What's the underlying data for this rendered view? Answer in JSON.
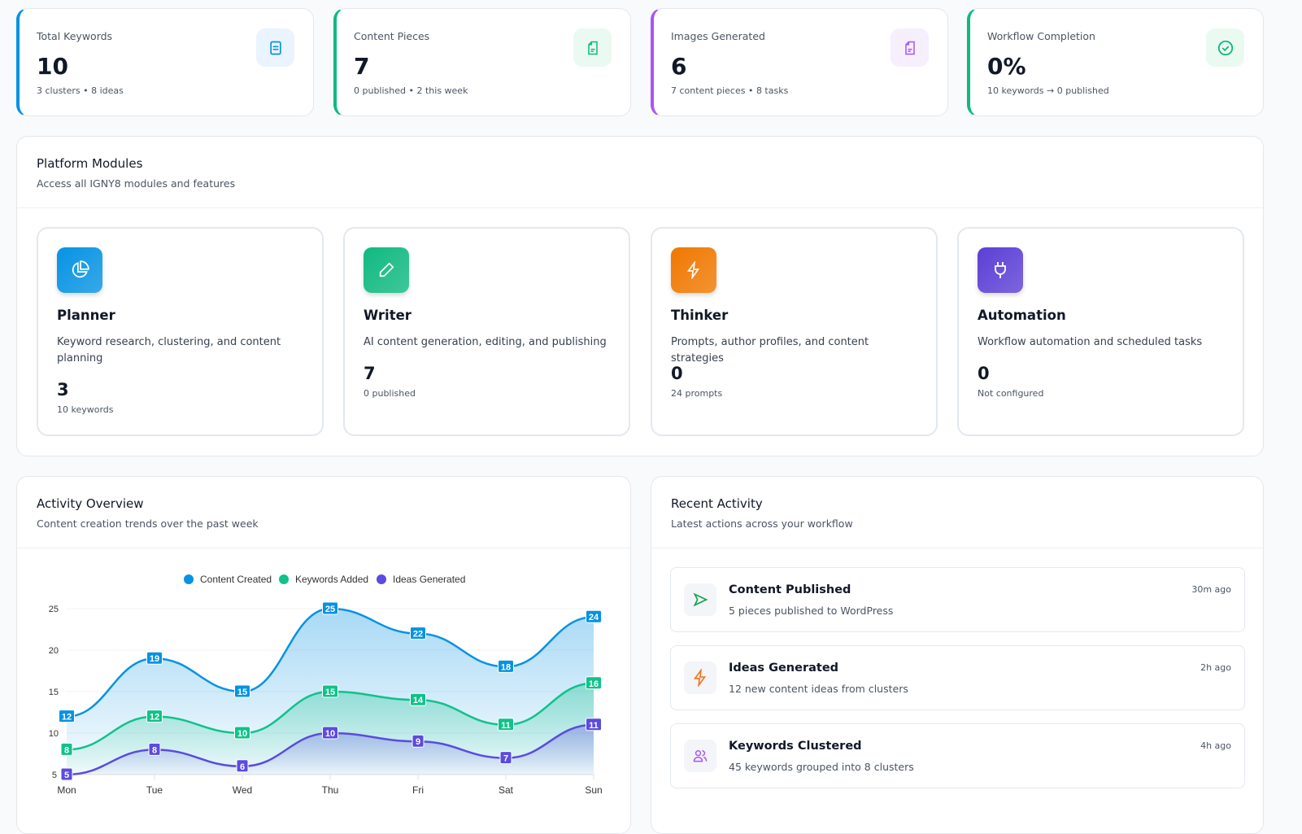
{
  "stats": [
    {
      "label": "Total Keywords",
      "value": "10",
      "sub": "3 clusters • 8 ideas",
      "color": "#0693e3",
      "icon": "list-icon",
      "icon_bg": "#eaf4fe"
    },
    {
      "label": "Content Pieces",
      "value": "7",
      "sub": "0 published • 2 this week",
      "color": "#10b981",
      "icon": "file-icon",
      "icon_bg": "#eafaf1"
    },
    {
      "label": "Images Generated",
      "value": "6",
      "sub": "7 content pieces • 8 tasks",
      "color": "#a855f7",
      "icon": "file-icon",
      "icon_bg": "#f6effe"
    },
    {
      "label": "Workflow Completion",
      "value": "0%",
      "sub": "10 keywords → 0 published",
      "color": "#10b981",
      "icon": "check-circle-icon",
      "icon_bg": "#eafaf1"
    }
  ],
  "modules": {
    "title": "Platform Modules",
    "subtitle": "Access all IGNY8 modules and features",
    "items": [
      {
        "name": "Planner",
        "desc": "Keyword research, clustering, and content planning",
        "value": "3",
        "sub": "10 keywords",
        "icon": "pie-chart-icon",
        "color": "#0693e3"
      },
      {
        "name": "Writer",
        "desc": "AI content generation, editing, and publishing",
        "value": "7",
        "sub": "0 published",
        "icon": "pencil-icon",
        "color": "#10b981"
      },
      {
        "name": "Thinker",
        "desc": "Prompts, author profiles, and content strategies",
        "value": "0",
        "sub": "24 prompts",
        "icon": "bolt-icon",
        "color": "#f07800"
      },
      {
        "name": "Automation",
        "desc": "Workflow automation and scheduled tasks",
        "value": "0",
        "sub": "Not configured",
        "icon": "plug-icon",
        "color": "#5b3fd6"
      }
    ]
  },
  "activity_overview": {
    "title": "Activity Overview",
    "subtitle": "Content creation trends over the past week"
  },
  "recent": {
    "title": "Recent Activity",
    "subtitle": "Latest actions across your workflow",
    "items": [
      {
        "title": "Content Published",
        "desc": "5 pieces published to WordPress",
        "time": "30m ago",
        "icon": "send-icon",
        "color": "#16a34a"
      },
      {
        "title": "Ideas Generated",
        "desc": "12 new content ideas from clusters",
        "time": "2h ago",
        "icon": "bolt-icon",
        "color": "#f97316"
      },
      {
        "title": "Keywords Clustered",
        "desc": "45 keywords grouped into 8 clusters",
        "time": "4h ago",
        "icon": "users-icon",
        "color": "#a855f7"
      }
    ]
  },
  "chart_data": {
    "type": "area",
    "categories": [
      "Mon",
      "Tue",
      "Wed",
      "Thu",
      "Fri",
      "Sat",
      "Sun"
    ],
    "series": [
      {
        "name": "Content Created",
        "values": [
          12,
          19,
          15,
          25,
          22,
          18,
          24
        ],
        "color": "#0693e3"
      },
      {
        "name": "Keywords Added",
        "values": [
          8,
          12,
          10,
          15,
          14,
          11,
          16
        ],
        "color": "#10c28a"
      },
      {
        "name": "Ideas Generated",
        "values": [
          5,
          8,
          6,
          10,
          9,
          7,
          11
        ],
        "color": "#5b4be0"
      }
    ],
    "yticks": [
      5,
      10,
      15,
      20,
      25
    ],
    "ylim": [
      5,
      25
    ],
    "legend": "top-center",
    "grid": true
  }
}
